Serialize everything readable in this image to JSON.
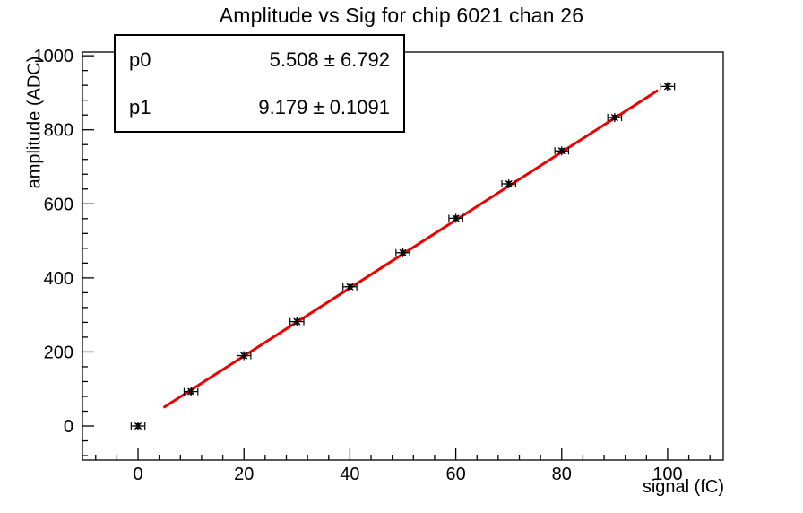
{
  "title": "Amplitude vs Sig for chip 6021 chan 26",
  "stats": {
    "rows": [
      {
        "name": "p0",
        "value": "5.508 ± 6.792"
      },
      {
        "name": "p1",
        "value": "9.179 ± 0.1091"
      }
    ]
  },
  "chart_data": {
    "type": "scatter",
    "title": "Amplitude vs Sig for chip 6021 chan 26",
    "xlabel": "signal (fC)",
    "ylabel": "amplitude (ADC)",
    "x": [
      0,
      10,
      20,
      30,
      40,
      50,
      60,
      70,
      80,
      90,
      100
    ],
    "y": [
      0,
      93,
      190,
      282,
      376,
      468,
      561,
      654,
      743,
      833,
      917
    ],
    "x_err": 1.3,
    "y_err": 6,
    "marker": "star",
    "marker_color": "#000000",
    "fit": {
      "label_p0": "p0",
      "p0": 5.508,
      "p0_err": 6.792,
      "label_p1": "p1",
      "p1": 9.179,
      "p1_err": 0.1091,
      "range": [
        5,
        98
      ],
      "color": "#ee0000"
    },
    "xlim": [
      -10.5,
      110.5
    ],
    "ylim": [
      -92,
      1010
    ],
    "x_ticks": [
      0,
      20,
      40,
      60,
      80,
      100
    ],
    "y_ticks": [
      0,
      200,
      400,
      600,
      800,
      1000
    ],
    "x_minor_step": 4,
    "y_minor_step": 40,
    "grid": false,
    "legend": "none"
  }
}
